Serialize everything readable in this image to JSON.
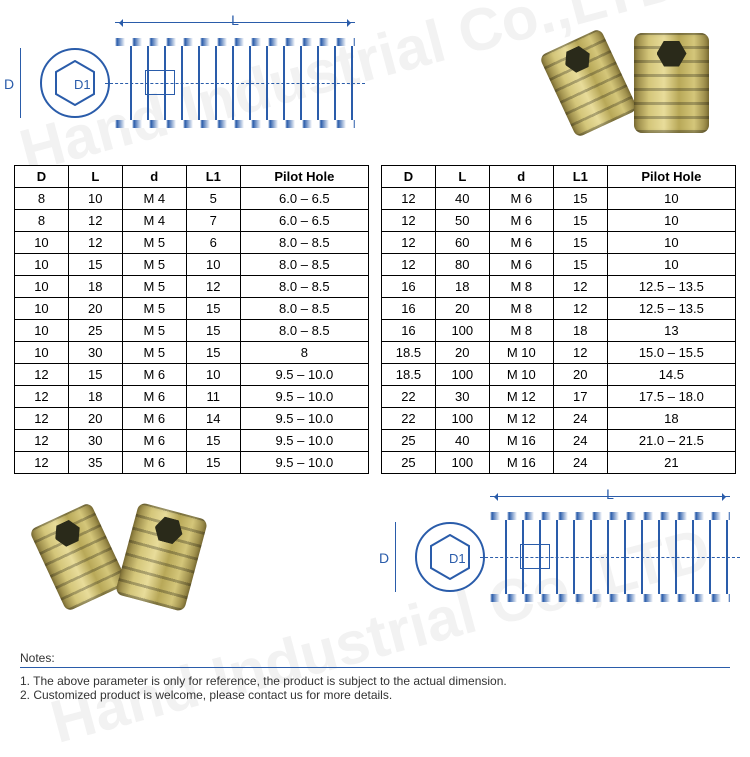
{
  "watermark": "Hand Industrial Co.,LTD",
  "diagram": {
    "label_L": "L",
    "label_D": "D",
    "label_D1": "D1",
    "stroke_color": "#2a5caa"
  },
  "table": {
    "columns": [
      "D",
      "L",
      "d",
      "L1",
      "Pilot Hole"
    ],
    "left_rows": [
      [
        "8",
        "10",
        "M 4",
        "5",
        "6.0 – 6.5"
      ],
      [
        "8",
        "12",
        "M 4",
        "7",
        "6.0 – 6.5"
      ],
      [
        "10",
        "12",
        "M 5",
        "6",
        "8.0 – 8.5"
      ],
      [
        "10",
        "15",
        "M 5",
        "10",
        "8.0 – 8.5"
      ],
      [
        "10",
        "18",
        "M 5",
        "12",
        "8.0 – 8.5"
      ],
      [
        "10",
        "20",
        "M 5",
        "15",
        "8.0 – 8.5"
      ],
      [
        "10",
        "25",
        "M 5",
        "15",
        "8.0 – 8.5"
      ],
      [
        "10",
        "30",
        "M 5",
        "15",
        "8"
      ],
      [
        "12",
        "15",
        "M 6",
        "10",
        "9.5 – 10.0"
      ],
      [
        "12",
        "18",
        "M 6",
        "11",
        "9.5 – 10.0"
      ],
      [
        "12",
        "20",
        "M 6",
        "14",
        "9.5 – 10.0"
      ],
      [
        "12",
        "30",
        "M 6",
        "15",
        "9.5 – 10.0"
      ],
      [
        "12",
        "35",
        "M 6",
        "15",
        "9.5 – 10.0"
      ]
    ],
    "right_rows": [
      [
        "12",
        "40",
        "M 6",
        "15",
        "10"
      ],
      [
        "12",
        "50",
        "M 6",
        "15",
        "10"
      ],
      [
        "12",
        "60",
        "M 6",
        "15",
        "10"
      ],
      [
        "12",
        "80",
        "M 6",
        "15",
        "10"
      ],
      [
        "16",
        "18",
        "M 8",
        "12",
        "12.5 – 13.5"
      ],
      [
        "16",
        "20",
        "M 8",
        "12",
        "12.5 – 13.5"
      ],
      [
        "16",
        "100",
        "M 8",
        "18",
        "13"
      ],
      [
        "18.5",
        "20",
        "M 10",
        "12",
        "15.0 – 15.5"
      ],
      [
        "18.5",
        "100",
        "M 10",
        "20",
        "14.5"
      ],
      [
        "22",
        "30",
        "M 12",
        "17",
        "17.5 – 18.0"
      ],
      [
        "22",
        "100",
        "M 12",
        "24",
        "18"
      ],
      [
        "25",
        "40",
        "M 16",
        "24",
        "21.0 – 21.5"
      ],
      [
        "25",
        "100",
        "M 16",
        "24",
        "21"
      ]
    ]
  },
  "notes": {
    "title": "Notes:",
    "line1": "1. The above parameter is only for reference, the product is subject to the actual dimension.",
    "line2": "2. Customized product is welcome, please contact us for more details."
  }
}
